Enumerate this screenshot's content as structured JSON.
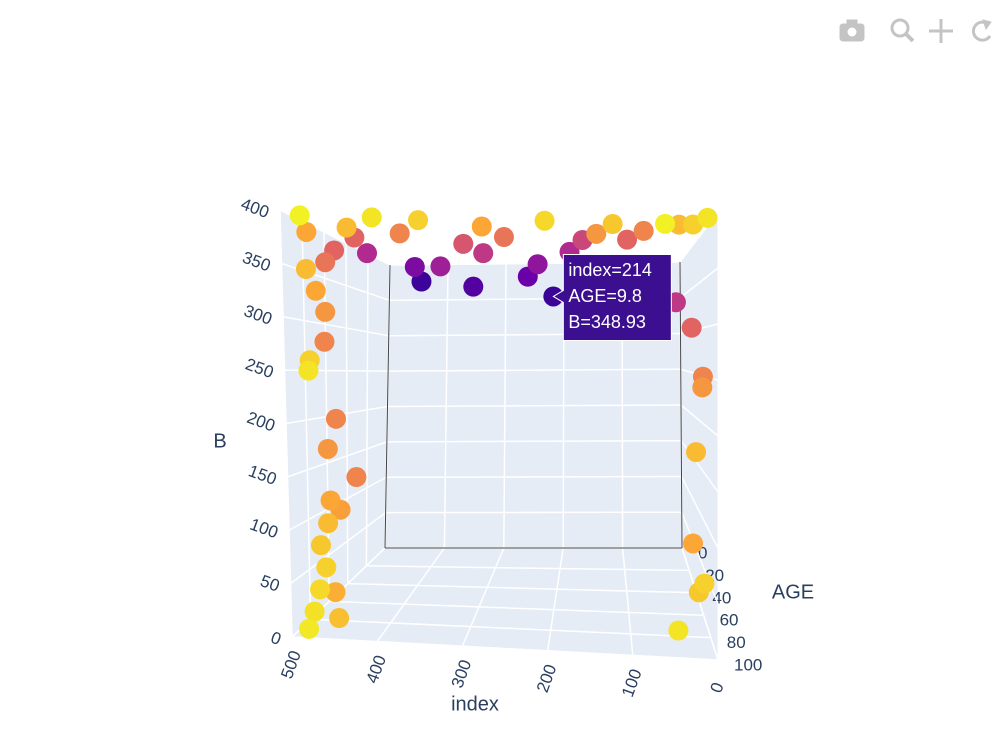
{
  "chart_data": {
    "type": "scatter3d",
    "x_title": "index",
    "y_title": "AGE",
    "z_title": "B",
    "xlim": [
      0,
      500
    ],
    "ylim": [
      0,
      100
    ],
    "zlim": [
      0,
      400
    ],
    "xticks": [
      0,
      100,
      200,
      300,
      400,
      500
    ],
    "yticks": [
      0,
      20,
      40,
      60,
      80,
      100
    ],
    "zticks": [
      0,
      50,
      100,
      150,
      200,
      250,
      300,
      350,
      400
    ],
    "colorscale": [
      "#0d0887",
      "#6a00a8",
      "#b12a90",
      "#e16462",
      "#fca636",
      "#f0f921"
    ],
    "color_by": "AGE",
    "x": [
      10,
      25,
      40,
      60,
      80,
      100,
      120,
      140,
      160,
      180,
      200,
      230,
      250,
      260,
      280,
      300,
      320,
      340,
      350,
      370,
      390,
      400,
      420,
      440,
      460,
      480,
      495,
      470,
      430,
      150,
      110,
      70,
      30,
      15,
      5,
      8,
      20,
      12,
      18,
      22,
      45,
      490,
      485,
      480,
      488,
      482,
      478,
      475,
      480,
      472,
      470,
      476,
      468,
      474,
      479,
      484,
      462,
      466,
      458,
      450,
      487,
      492
    ],
    "y": [
      95,
      90,
      85,
      98,
      70,
      60,
      88,
      75,
      50,
      40,
      92,
      30,
      20,
      65,
      80,
      45,
      55,
      15,
      90,
      35,
      70,
      95,
      25,
      85,
      60,
      98,
      80,
      40,
      10,
      12,
      8,
      20,
      45,
      60,
      70,
      75,
      85,
      90,
      88,
      80,
      95,
      85,
      80,
      75,
      70,
      90,
      95,
      70,
      75,
      80,
      85,
      88,
      90,
      92,
      94,
      96,
      78,
      82,
      86,
      70,
      60,
      65
    ],
    "z": [
      396.9,
      393,
      395,
      390,
      396,
      392,
      394,
      390.5,
      396.9,
      389,
      395,
      380,
      370,
      392,
      395,
      385,
      390,
      360,
      396,
      375,
      393,
      396,
      380,
      391,
      394,
      396,
      389,
      388,
      370,
      340,
      355,
      360,
      330,
      300,
      250,
      240,
      180,
      60,
      50,
      90,
      20,
      350,
      330,
      310,
      280,
      260,
      250,
      200,
      170,
      120,
      100,
      80,
      60,
      40,
      20,
      5,
      110,
      30,
      8,
      140,
      380,
      365
    ],
    "hover": {
      "x": 214,
      "y": 9.8,
      "z": 348.93,
      "lines": [
        "index=214",
        "AGE=9.8",
        "B=348.93"
      ]
    }
  }
}
